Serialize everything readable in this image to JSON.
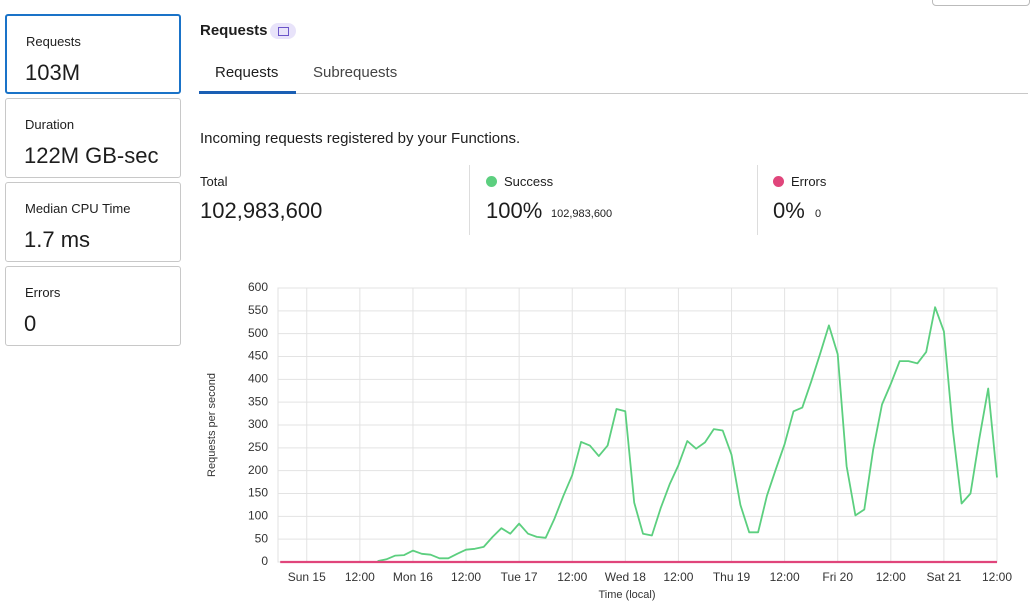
{
  "sidebar": [
    {
      "label": "Requests",
      "value": "103M"
    },
    {
      "label": "Duration",
      "value": "122M GB-sec"
    },
    {
      "label": "Median CPU Time",
      "value": "1.7 ms"
    },
    {
      "label": "Errors",
      "value": "0"
    }
  ],
  "header": {
    "title": "Requests"
  },
  "tabs": [
    "Requests",
    "Subrequests"
  ],
  "description": "Incoming requests registered by your Functions.",
  "stats": [
    {
      "label": "Total",
      "value": "102,983,600"
    },
    {
      "label": "Success",
      "value": "100%",
      "detail": "102,983,600"
    },
    {
      "label": "Errors",
      "value": "0%",
      "detail": "0"
    }
  ],
  "chart_data": {
    "type": "line",
    "y_label": "Requests per second",
    "x_label": "Time (local)",
    "categories": [
      null,
      null,
      null,
      "Sun 15",
      null,
      null,
      null,
      null,
      null,
      "12:00",
      null,
      null,
      null,
      null,
      null,
      "Mon 16",
      null,
      null,
      null,
      null,
      null,
      "12:00",
      null,
      null,
      null,
      null,
      null,
      "Tue 17",
      null,
      null,
      null,
      null,
      null,
      "12:00",
      null,
      null,
      null,
      null,
      null,
      "Wed 18",
      null,
      null,
      null,
      null,
      null,
      "12:00",
      null,
      null,
      null,
      null,
      null,
      "Thu 19",
      null,
      null,
      null,
      null,
      null,
      "12:00",
      null,
      null,
      null,
      null,
      null,
      "Fri 20",
      null,
      null,
      null,
      null,
      null,
      "12:00",
      null,
      null,
      null,
      null,
      null,
      "Sat 21",
      null,
      null,
      null,
      null,
      null,
      "12:00"
    ],
    "series": [
      {
        "name": "Success",
        "color": "#5ccf7f",
        "values": [
          null,
          null,
          null,
          null,
          null,
          null,
          null,
          null,
          null,
          null,
          null,
          2,
          6,
          14,
          15,
          25,
          18,
          16,
          8,
          8,
          18,
          27,
          29,
          33,
          55,
          74,
          62,
          84,
          62,
          55,
          53,
          95,
          145,
          190,
          263,
          255,
          232,
          255,
          335,
          330,
          130,
          62,
          58,
          118,
          170,
          212,
          265,
          248,
          262,
          291,
          288,
          235,
          125,
          65,
          65,
          145,
          203,
          258,
          330,
          338,
          395,
          455,
          518,
          455,
          210,
          102,
          115,
          245,
          345,
          390,
          440,
          440,
          435,
          460,
          558,
          505,
          290,
          128,
          150,
          270,
          380,
          185
        ]
      },
      {
        "name": "Errors",
        "color": "#e0457b",
        "values": [
          0,
          0,
          0,
          0,
          0,
          0,
          0,
          0,
          0,
          0,
          0,
          0,
          0,
          0,
          0,
          0,
          0,
          0,
          0,
          0,
          0,
          0,
          0,
          0,
          0,
          0,
          0,
          0,
          0,
          0,
          0,
          0,
          0,
          0,
          0,
          0,
          0,
          0,
          0,
          0,
          0,
          0,
          0,
          0,
          0,
          0,
          0,
          0,
          0,
          0,
          0,
          0,
          0,
          0,
          0,
          0,
          0,
          0,
          0,
          0,
          0,
          0,
          0,
          0,
          0,
          0,
          0,
          0,
          0,
          0,
          0,
          0,
          0,
          0,
          0,
          0,
          0,
          0,
          0,
          0,
          0,
          0
        ]
      }
    ],
    "ylim": [
      0,
      600
    ],
    "yticks": [
      0,
      50,
      100,
      150,
      200,
      250,
      300,
      350,
      400,
      450,
      500,
      550,
      600
    ],
    "grid": true
  }
}
